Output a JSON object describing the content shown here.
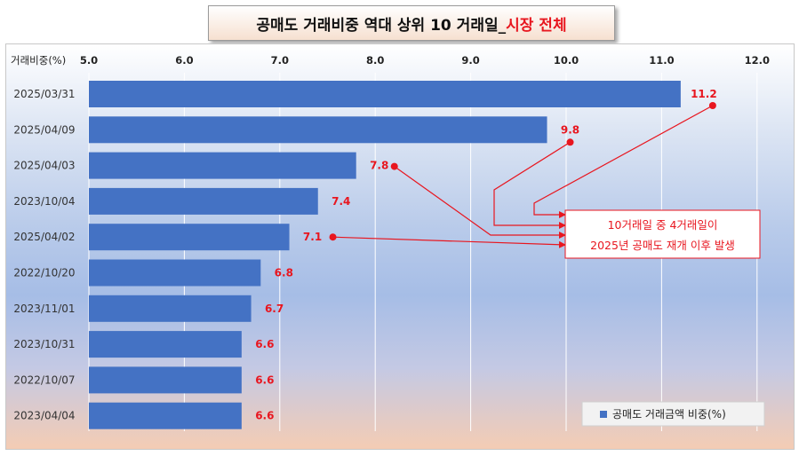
{
  "title": {
    "main": "공매도 거래비중 역대 상위 10 거래일_",
    "highlight": "시장 전체"
  },
  "axis_label": "거래비중(%)",
  "colors": {
    "bar": "#4472c4",
    "label": "#e8161f",
    "title_highlight": "#e8161f"
  },
  "annotation": {
    "line1": "10거래일 중 4거래일이",
    "line2": "2025년 공매도 재개 이후 발생"
  },
  "legend": {
    "label": "공매도 거래금액 비중(%)"
  },
  "chart_data": {
    "type": "bar",
    "orientation": "horizontal",
    "title": "공매도 거래비중 역대 상위 10 거래일_시장 전체",
    "xlabel": "거래비중(%)",
    "xlim": [
      5.0,
      12.0
    ],
    "x_ticks": [
      "5.0",
      "6.0",
      "7.0",
      "8.0",
      "9.0",
      "10.0",
      "11.0",
      "12.0"
    ],
    "categories": [
      "2025/03/31",
      "2025/04/09",
      "2025/04/03",
      "2023/10/04",
      "2025/04/02",
      "2022/10/20",
      "2023/11/01",
      "2023/10/31",
      "2022/10/07",
      "2023/04/04"
    ],
    "series": [
      {
        "name": "공매도 거래금액 비중(%)",
        "values": [
          11.2,
          9.8,
          7.8,
          7.4,
          7.1,
          6.8,
          6.7,
          6.6,
          6.6,
          6.6
        ]
      }
    ],
    "data_labels": [
      "11.2",
      "9.8",
      "7.8",
      "7.4",
      "7.1",
      "6.8",
      "6.7",
      "6.6",
      "6.6",
      "6.6"
    ],
    "grid": true,
    "legend_position": "bottom-right",
    "highlighted_categories": [
      "2025/03/31",
      "2025/04/09",
      "2025/04/03",
      "2025/04/02"
    ]
  }
}
